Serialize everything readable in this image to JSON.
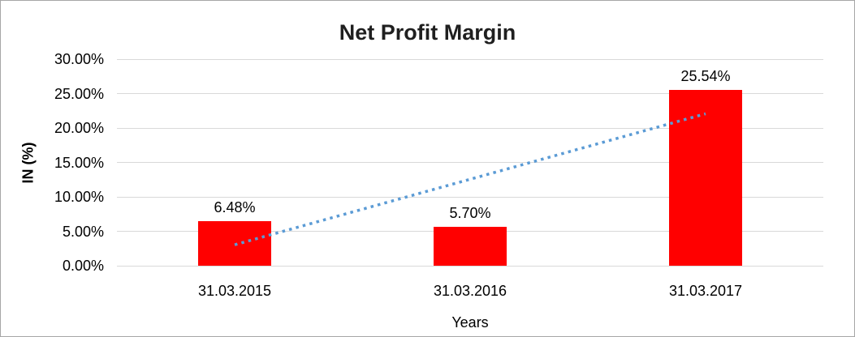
{
  "window": {
    "background": "#FFFFFF",
    "border_color": "#A6A6A6"
  },
  "chart_data": {
    "type": "bar",
    "title": "Net Profit Margin",
    "xlabel": "Years",
    "ylabel": "IN (%)",
    "categories": [
      "31.03.2015",
      "31.03.2016",
      "31.03.2017"
    ],
    "values": [
      6.48,
      5.7,
      25.54
    ],
    "data_labels": [
      "6.48%",
      "5.70%",
      "25.54%"
    ],
    "ylim": [
      0,
      30
    ],
    "ytick_step": 5,
    "ytick_labels": [
      "0.00%",
      "5.00%",
      "10.00%",
      "15.00%",
      "20.00%",
      "25.00%",
      "30.00%"
    ],
    "grid": true,
    "legend": "none",
    "bar_color": "#FF0000",
    "gridline_color": "#D9D9D9",
    "text_color": "#000000",
    "trendline": {
      "type": "linear",
      "style": "dotted",
      "color": "#5B9BD5",
      "start_value": 3.04,
      "end_value": 22.07
    }
  }
}
